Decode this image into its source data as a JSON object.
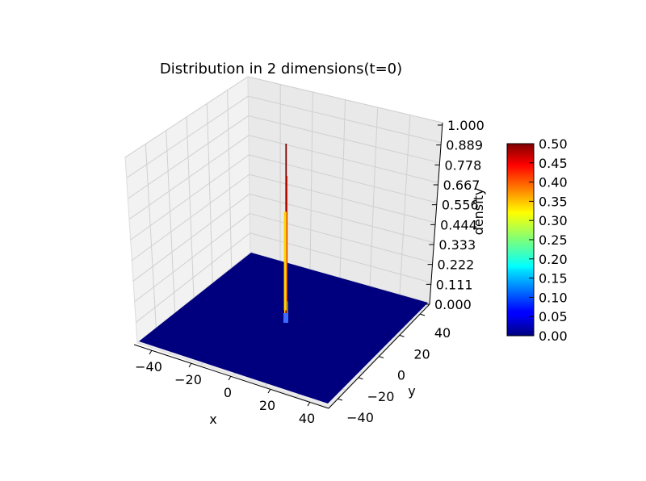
{
  "chart_data": {
    "type": "surface3d",
    "title": "Distribution in 2 dimensions(t=0)",
    "xlabel": "x",
    "ylabel": "y",
    "zlabel": "density",
    "xlim": [
      -50,
      50
    ],
    "ylim": [
      -50,
      50
    ],
    "zlim": [
      0,
      1
    ],
    "x_ticks": [
      "−40",
      "−20",
      "0",
      "20",
      "40"
    ],
    "y_ticks": [
      "−40",
      "−20",
      "0",
      "20",
      "40"
    ],
    "z_ticks": [
      "0.000",
      "0.111",
      "0.222",
      "0.333",
      "0.444",
      "0.556",
      "0.667",
      "0.778",
      "0.889",
      "1.000"
    ],
    "grid": true,
    "colormap": "jet",
    "surface": {
      "baseline_value": 0.0,
      "peak_x": 0,
      "peak_y": 0,
      "peak_value": 1.0
    },
    "colorbar": {
      "range": [
        0,
        0.5
      ],
      "ticks": [
        "0.00",
        "0.05",
        "0.10",
        "0.15",
        "0.20",
        "0.25",
        "0.30",
        "0.35",
        "0.40",
        "0.45",
        "0.50"
      ],
      "placement": "right"
    }
  }
}
